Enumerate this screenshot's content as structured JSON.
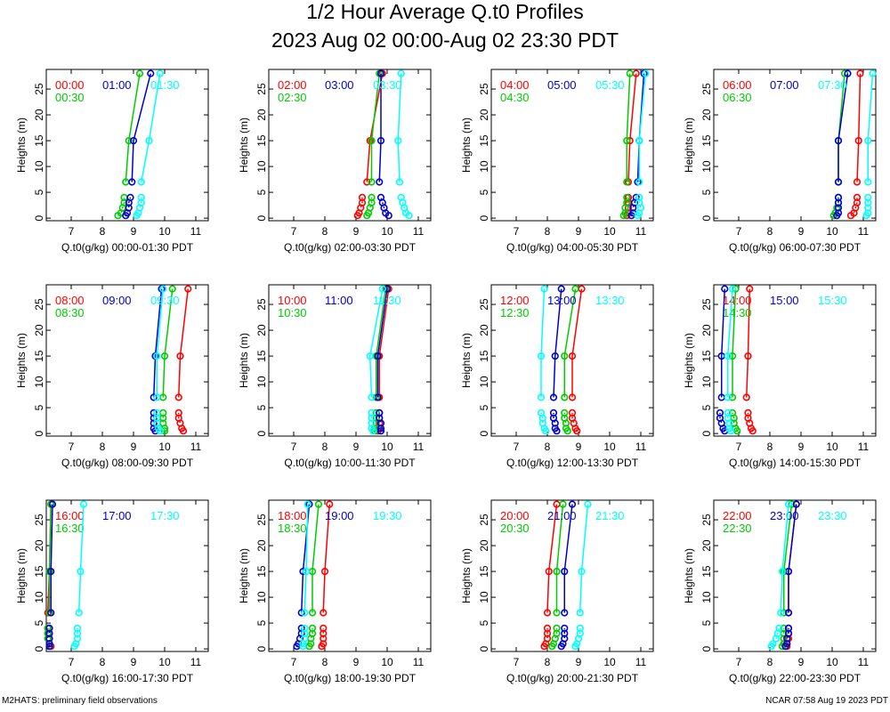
{
  "title": "1/2 Hour Average Q.t0 Profiles",
  "subtitle": "2023 Aug 02 00:00-Aug 02 23:30 PDT",
  "footer_left": "M2HATS: preliminary field observations",
  "footer_right": "NCAR 07:58 Aug 19 2023 PDT",
  "colors": {
    "series1": "#ff0000",
    "series2": "#00cc00",
    "series3": "#0000cc",
    "series4": "#00ffff"
  },
  "chart_data": [
    {
      "type": "line",
      "xlabel": "Q.t0(g/kg) 00:00-01:30 PDT",
      "ylabel": "Heights (m)",
      "xlim": [
        6.2,
        11.4
      ],
      "ylim": [
        -0.5,
        28.8
      ],
      "xticks": [
        7,
        8,
        9,
        10,
        11
      ],
      "yticks": [
        0,
        5,
        10,
        15,
        20,
        25
      ],
      "heights": [
        0.5,
        1,
        2,
        3,
        4,
        7,
        15,
        28
      ],
      "series": [
        {
          "name": "00:00",
          "values": [
            null,
            null,
            null,
            null,
            null,
            null,
            null,
            null
          ]
        },
        {
          "name": "00:30",
          "values": [
            8.5,
            8.6,
            8.65,
            8.7,
            8.7,
            8.75,
            8.85,
            9.2
          ]
        },
        {
          "name": "01:00",
          "values": [
            8.75,
            8.8,
            8.85,
            8.85,
            8.9,
            8.95,
            9.0,
            9.55
          ]
        },
        {
          "name": "01:30",
          "values": [
            9.1,
            9.15,
            9.2,
            9.25,
            9.25,
            9.25,
            9.5,
            9.85
          ]
        }
      ]
    },
    {
      "type": "line",
      "xlabel": "Q.t0(g/kg) 02:00-03:30 PDT",
      "ylabel": "Heights (m)",
      "xlim": [
        6.2,
        11.4
      ],
      "ylim": [
        -0.5,
        28.8
      ],
      "xticks": [
        7,
        8,
        9,
        10,
        11
      ],
      "yticks": [
        0,
        5,
        10,
        15,
        20,
        25
      ],
      "heights": [
        0.5,
        1,
        2,
        3,
        4,
        7,
        15,
        28
      ],
      "series": [
        {
          "name": "02:00",
          "values": [
            9.05,
            9.1,
            9.15,
            9.2,
            9.2,
            9.35,
            9.45,
            9.85
          ]
        },
        {
          "name": "02:30",
          "values": [
            9.35,
            9.4,
            9.45,
            9.5,
            9.5,
            9.5,
            9.5,
            9.75
          ]
        },
        {
          "name": "03:00",
          "values": [
            10.05,
            9.95,
            9.9,
            9.85,
            9.8,
            9.75,
            9.8,
            9.8
          ]
        },
        {
          "name": "03:30",
          "values": [
            10.7,
            10.6,
            10.55,
            10.5,
            10.45,
            10.4,
            10.35,
            10.45
          ]
        }
      ]
    },
    {
      "type": "line",
      "xlabel": "Q.t0(g/kg) 04:00-05:30 PDT",
      "ylabel": "Heights (m)",
      "xlim": [
        6.2,
        11.4
      ],
      "ylim": [
        -0.5,
        28.8
      ],
      "xticks": [
        7,
        8,
        9,
        10,
        11
      ],
      "yticks": [
        0,
        5,
        10,
        15,
        20,
        25
      ],
      "heights": [
        0.5,
        1,
        2,
        3,
        4,
        7,
        15,
        28
      ],
      "series": [
        {
          "name": "04:00",
          "values": [
            10.55,
            10.6,
            10.6,
            10.6,
            10.6,
            10.6,
            10.65,
            10.85
          ]
        },
        {
          "name": "04:30",
          "values": [
            10.45,
            10.5,
            10.5,
            10.55,
            10.55,
            10.55,
            10.55,
            10.65
          ]
        },
        {
          "name": "05:00",
          "values": [
            10.7,
            10.75,
            10.75,
            10.8,
            10.85,
            10.9,
            10.95,
            11.1
          ]
        },
        {
          "name": "05:30",
          "values": [
            10.9,
            10.95,
            11.0,
            10.95,
            10.95,
            10.95,
            10.95,
            11.15
          ]
        }
      ]
    },
    {
      "type": "line",
      "xlabel": "Q.t0(g/kg) 06:00-07:30 PDT",
      "ylabel": "Heights (m)",
      "xlim": [
        6.2,
        11.4
      ],
      "ylim": [
        -0.5,
        28.8
      ],
      "xticks": [
        7,
        8,
        9,
        10,
        11
      ],
      "yticks": [
        0,
        5,
        10,
        15,
        20,
        25
      ],
      "heights": [
        0.5,
        1,
        2,
        3,
        4,
        7,
        15,
        28
      ],
      "series": [
        {
          "name": "06:00",
          "values": [
            10.6,
            10.7,
            10.75,
            10.8,
            10.8,
            10.8,
            10.85,
            10.9
          ]
        },
        {
          "name": "06:30",
          "values": [
            10.05,
            10.1,
            10.15,
            10.2,
            10.2,
            10.2,
            10.2,
            10.4
          ]
        },
        {
          "name": "07:00",
          "values": [
            10.15,
            10.2,
            10.2,
            10.2,
            10.2,
            10.2,
            10.2,
            10.5
          ]
        },
        {
          "name": "07:30",
          "values": [
            11.1,
            11.15,
            11.15,
            11.15,
            11.15,
            11.15,
            11.15,
            11.3
          ]
        }
      ]
    },
    {
      "type": "line",
      "xlabel": "Q.t0(g/kg) 08:00-09:30 PDT",
      "ylabel": "Heights (m)",
      "xlim": [
        6.2,
        11.4
      ],
      "ylim": [
        -0.5,
        28.8
      ],
      "xticks": [
        7,
        8,
        9,
        10,
        11
      ],
      "yticks": [
        0,
        5,
        10,
        15,
        20,
        25
      ],
      "heights": [
        0.5,
        1,
        2,
        3,
        4,
        7,
        15,
        28
      ],
      "series": [
        {
          "name": "08:00",
          "values": [
            10.6,
            10.55,
            10.5,
            10.45,
            10.45,
            10.45,
            10.5,
            10.75
          ]
        },
        {
          "name": "08:30",
          "values": [
            10.0,
            10.0,
            9.95,
            9.95,
            9.95,
            9.95,
            10.0,
            10.25
          ]
        },
        {
          "name": "09:00",
          "values": [
            9.7,
            9.65,
            9.65,
            9.65,
            9.65,
            9.65,
            9.7,
            9.9
          ]
        },
        {
          "name": "09:30",
          "values": [
            9.85,
            9.8,
            9.75,
            9.75,
            9.75,
            9.75,
            9.75,
            9.95
          ]
        }
      ]
    },
    {
      "type": "line",
      "xlabel": "Q.t0(g/kg) 10:00-11:30 PDT",
      "ylabel": "Heights (m)",
      "xlim": [
        6.2,
        11.4
      ],
      "ylim": [
        -0.5,
        28.8
      ],
      "xticks": [
        7,
        8,
        9,
        10,
        11
      ],
      "yticks": [
        0,
        5,
        10,
        15,
        20,
        25
      ],
      "heights": [
        0.5,
        1,
        2,
        3,
        4,
        7,
        15,
        28
      ],
      "series": [
        {
          "name": "10:00",
          "values": [
            9.7,
            9.75,
            9.75,
            9.75,
            9.75,
            9.75,
            9.75,
            10.05
          ]
        },
        {
          "name": "10:30",
          "values": [
            9.6,
            9.6,
            9.65,
            9.65,
            9.65,
            9.65,
            9.65,
            9.95
          ]
        },
        {
          "name": "11:00",
          "values": [
            9.8,
            9.8,
            9.8,
            9.75,
            9.75,
            9.7,
            9.7,
            10.0
          ]
        },
        {
          "name": "11:30",
          "values": [
            9.55,
            9.5,
            9.5,
            9.5,
            9.5,
            9.5,
            9.45,
            9.85
          ]
        }
      ]
    },
    {
      "type": "line",
      "xlabel": "Q.t0(g/kg) 12:00-13:30 PDT",
      "ylabel": "Heights (m)",
      "xlim": [
        6.2,
        11.4
      ],
      "ylim": [
        -0.5,
        28.8
      ],
      "xticks": [
        7,
        8,
        9,
        10,
        11
      ],
      "yticks": [
        0,
        5,
        10,
        15,
        20,
        25
      ],
      "heights": [
        0.5,
        1,
        2,
        3,
        4,
        7,
        15,
        28
      ],
      "series": [
        {
          "name": "12:00",
          "values": [
            8.95,
            8.9,
            8.85,
            8.8,
            8.8,
            8.8,
            8.8,
            9.1
          ]
        },
        {
          "name": "12:30",
          "values": [
            8.65,
            8.6,
            8.6,
            8.55,
            8.55,
            8.55,
            8.55,
            8.9
          ]
        },
        {
          "name": "13:00",
          "values": [
            8.3,
            8.25,
            8.25,
            8.2,
            8.2,
            8.2,
            8.25,
            8.45
          ]
        },
        {
          "name": "13:30",
          "values": [
            7.95,
            7.9,
            7.85,
            7.85,
            7.8,
            7.8,
            7.8,
            7.9
          ]
        }
      ]
    },
    {
      "type": "line",
      "xlabel": "Q.t0(g/kg) 14:00-15:30 PDT",
      "ylabel": "Heights (m)",
      "xlim": [
        6.2,
        11.4
      ],
      "ylim": [
        -0.5,
        28.8
      ],
      "xticks": [
        7,
        8,
        9,
        10,
        11
      ],
      "yticks": [
        0,
        5,
        10,
        15,
        20,
        25
      ],
      "heights": [
        0.5,
        1,
        2,
        3,
        4,
        7,
        15,
        28
      ],
      "series": [
        {
          "name": "14:00",
          "values": [
            7.45,
            7.4,
            7.35,
            7.3,
            7.3,
            7.25,
            7.3,
            7.35
          ]
        },
        {
          "name": "14:30",
          "values": [
            6.95,
            6.9,
            6.85,
            6.85,
            6.8,
            6.8,
            6.8,
            6.9
          ]
        },
        {
          "name": "15:00",
          "values": [
            6.55,
            6.5,
            6.45,
            6.4,
            6.4,
            6.45,
            6.45,
            6.55
          ]
        },
        {
          "name": "15:30",
          "values": [
            6.75,
            6.7,
            6.7,
            6.65,
            6.65,
            6.65,
            6.65,
            6.8
          ]
        }
      ]
    },
    {
      "type": "line",
      "xlabel": "Q.t0(g/kg) 16:00-17:30 PDT",
      "ylabel": "Heights (m)",
      "xlim": [
        6.2,
        11.4
      ],
      "ylim": [
        -0.5,
        28.8
      ],
      "xticks": [
        7,
        8,
        9,
        10,
        11
      ],
      "yticks": [
        0,
        5,
        10,
        15,
        20,
        25
      ],
      "heights": [
        0.5,
        1,
        2,
        3,
        4,
        7,
        15,
        28
      ],
      "series": [
        {
          "name": "16:00",
          "values": [
            6.35,
            6.3,
            6.25,
            6.25,
            6.25,
            6.25,
            6.3,
            6.35
          ]
        },
        {
          "name": "16:30",
          "values": [
            6.3,
            6.3,
            6.25,
            6.25,
            6.25,
            6.3,
            6.3,
            6.35
          ]
        },
        {
          "name": "17:00",
          "values": [
            6.3,
            6.3,
            6.3,
            6.3,
            6.3,
            6.35,
            6.35,
            6.4
          ]
        },
        {
          "name": "17:30",
          "values": [
            7.1,
            7.15,
            7.2,
            7.2,
            7.2,
            7.25,
            7.3,
            7.4
          ]
        }
      ]
    },
    {
      "type": "line",
      "xlabel": "Q.t0(g/kg) 18:00-19:30 PDT",
      "ylabel": "Heights (m)",
      "xlim": [
        6.2,
        11.4
      ],
      "ylim": [
        -0.5,
        28.8
      ],
      "xticks": [
        7,
        8,
        9,
        10,
        11
      ],
      "yticks": [
        0,
        5,
        10,
        15,
        20,
        25
      ],
      "heights": [
        0.5,
        1,
        2,
        3,
        4,
        7,
        15,
        28
      ],
      "series": [
        {
          "name": "18:00",
          "values": [
            7.9,
            7.95,
            7.95,
            7.95,
            7.95,
            7.95,
            8.0,
            8.15
          ]
        },
        {
          "name": "18:30",
          "values": [
            7.5,
            7.55,
            7.55,
            7.6,
            7.6,
            7.6,
            7.6,
            7.8
          ]
        },
        {
          "name": "19:00",
          "values": [
            7.1,
            7.15,
            7.2,
            7.25,
            7.25,
            7.25,
            7.3,
            7.5
          ]
        },
        {
          "name": "19:30",
          "values": [
            7.3,
            7.3,
            7.35,
            7.35,
            7.35,
            7.35,
            7.4,
            7.45
          ]
        }
      ]
    },
    {
      "type": "line",
      "xlabel": "Q.t0(g/kg) 20:00-21:30 PDT",
      "ylabel": "Heights (m)",
      "xlim": [
        6.2,
        11.4
      ],
      "ylim": [
        -0.5,
        28.8
      ],
      "xticks": [
        7,
        8,
        9,
        10,
        11
      ],
      "yticks": [
        0,
        5,
        10,
        15,
        20,
        25
      ],
      "heights": [
        0.5,
        1,
        2,
        3,
        4,
        7,
        15,
        28
      ],
      "series": [
        {
          "name": "20:00",
          "values": [
            7.9,
            7.95,
            8.0,
            8.0,
            8.0,
            8.0,
            8.05,
            8.3
          ]
        },
        {
          "name": "20:30",
          "values": [
            8.15,
            8.2,
            8.25,
            8.3,
            8.3,
            8.3,
            8.3,
            8.5
          ]
        },
        {
          "name": "21:00",
          "values": [
            8.45,
            8.5,
            8.55,
            8.55,
            8.55,
            8.55,
            8.55,
            8.8
          ]
        },
        {
          "name": "21:30",
          "values": [
            8.9,
            8.95,
            9.0,
            9.05,
            9.05,
            9.05,
            9.1,
            9.3
          ]
        }
      ]
    },
    {
      "type": "line",
      "xlabel": "Q.t0(g/kg) 22:00-23:30 PDT",
      "ylabel": "Heights (m)",
      "xlim": [
        6.2,
        11.4
      ],
      "ylim": [
        -0.5,
        28.8
      ],
      "xticks": [
        7,
        8,
        9,
        10,
        11
      ],
      "yticks": [
        0,
        5,
        10,
        15,
        20,
        25
      ],
      "heights": [
        0.5,
        1,
        2,
        3,
        4,
        7,
        15,
        28
      ],
      "series": [
        {
          "name": "22:00",
          "values": [
            8.55,
            8.55,
            8.6,
            8.6,
            8.6,
            8.6,
            8.6,
            8.85
          ]
        },
        {
          "name": "22:30",
          "values": [
            8.4,
            8.45,
            8.45,
            8.45,
            8.45,
            8.45,
            8.45,
            8.7
          ]
        },
        {
          "name": "23:00",
          "values": [
            8.5,
            8.55,
            8.55,
            8.6,
            8.6,
            8.6,
            8.6,
            8.85
          ]
        },
        {
          "name": "23:30",
          "values": [
            8.05,
            8.1,
            8.2,
            8.25,
            8.3,
            8.35,
            8.4,
            8.6
          ]
        }
      ]
    }
  ]
}
